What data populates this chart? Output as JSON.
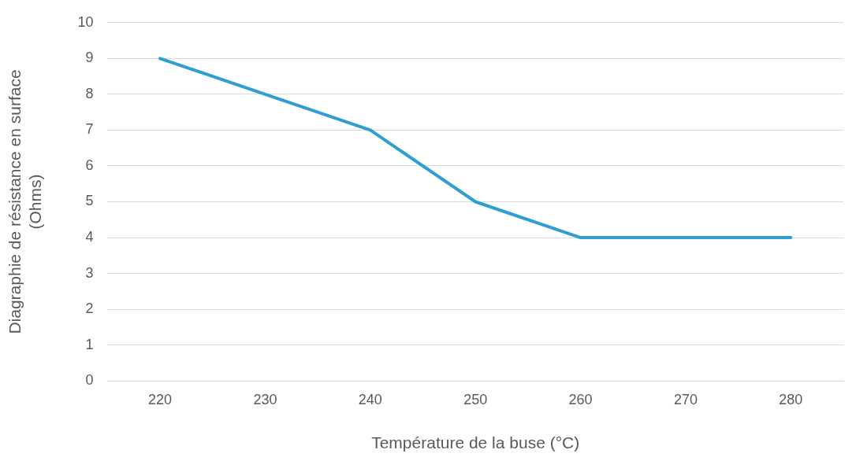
{
  "chart_data": {
    "type": "line",
    "xlabel": "Température de la buse (°C)",
    "ylabel": "Diagraphie de résistance en surface\n(Ohms)",
    "categories": [
      "220",
      "230",
      "240",
      "250",
      "260",
      "270",
      "280"
    ],
    "series": [
      {
        "color": "#2e9fd0",
        "values": [
          9,
          8,
          7,
          5,
          4,
          4,
          4
        ]
      }
    ],
    "ylim": [
      0,
      10
    ],
    "yticks": [
      0,
      1,
      2,
      3,
      4,
      5,
      6,
      7,
      8,
      9,
      10
    ],
    "grid": "y",
    "legend": false,
    "marker": "none",
    "line_style": "solid"
  }
}
